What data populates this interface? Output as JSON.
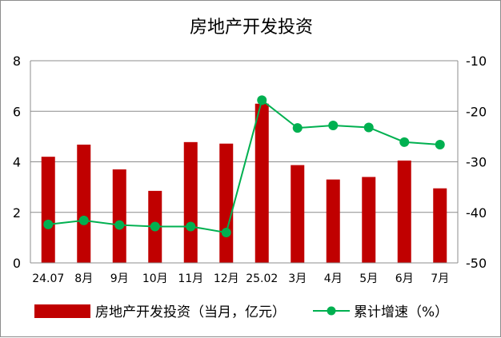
{
  "chart_data": {
    "type": "bar+line",
    "title": "房地产开发投资",
    "categories": [
      "24.07",
      "8月",
      "9月",
      "10月",
      "11月",
      "12月",
      "25.02",
      "3月",
      "4月",
      "5月",
      "6月",
      "7月"
    ],
    "series": [
      {
        "name": "房地产开发投资（当月，亿元）",
        "type": "bar",
        "axis": "left",
        "color": "#c00000",
        "values": [
          4.2,
          4.68,
          3.7,
          2.85,
          4.78,
          4.72,
          6.3,
          3.87,
          3.3,
          3.4,
          4.05,
          2.95
        ]
      },
      {
        "name": "累计增速（%）",
        "type": "line",
        "axis": "right",
        "color": "#00b050",
        "values": [
          -42.4,
          -41.6,
          -42.5,
          -42.8,
          -42.8,
          -44.0,
          -17.8,
          -23.3,
          -22.8,
          -23.2,
          -26.1,
          -26.6
        ]
      }
    ],
    "left_axis": {
      "min": 0,
      "max": 8,
      "ticks": [
        "0",
        "2",
        "4",
        "6",
        "8"
      ]
    },
    "right_axis": {
      "min": -50,
      "max": -10,
      "ticks": [
        "-50",
        "-40",
        "-30",
        "-20",
        "-10"
      ]
    },
    "grid": true,
    "legend_position": "bottom"
  }
}
